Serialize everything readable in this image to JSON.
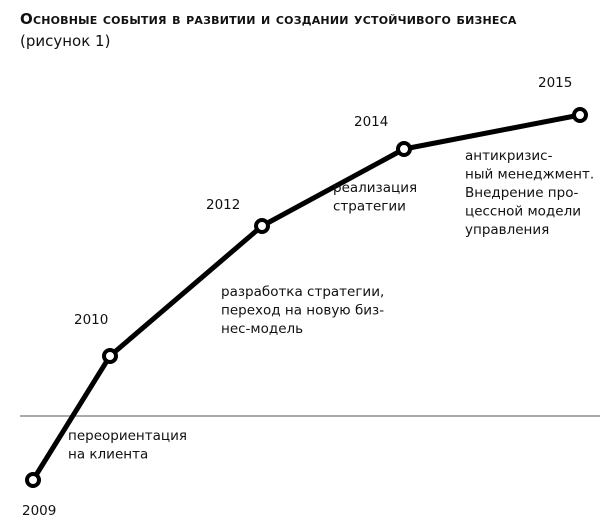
{
  "header": {
    "title": "Основные события в развитии и создании устойчивого бизнеса",
    "subtitle": "(рисунок 1)"
  },
  "nodes": [
    {
      "label": "2009",
      "description": [
        "переориентация",
        "на клиента"
      ]
    },
    {
      "label": "2010",
      "description": [
        "разработка стратегии,",
        "переход на новую биз-",
        "нес-модель"
      ]
    },
    {
      "label": "2012",
      "description": [
        "реализация",
        "стратегии"
      ]
    },
    {
      "label": "2014",
      "description": [
        "антикризис-",
        "ный менеджмент.",
        "Внедрение про-",
        "цессной модели",
        "управления"
      ]
    },
    {
      "label": "2015",
      "description": []
    }
  ]
}
